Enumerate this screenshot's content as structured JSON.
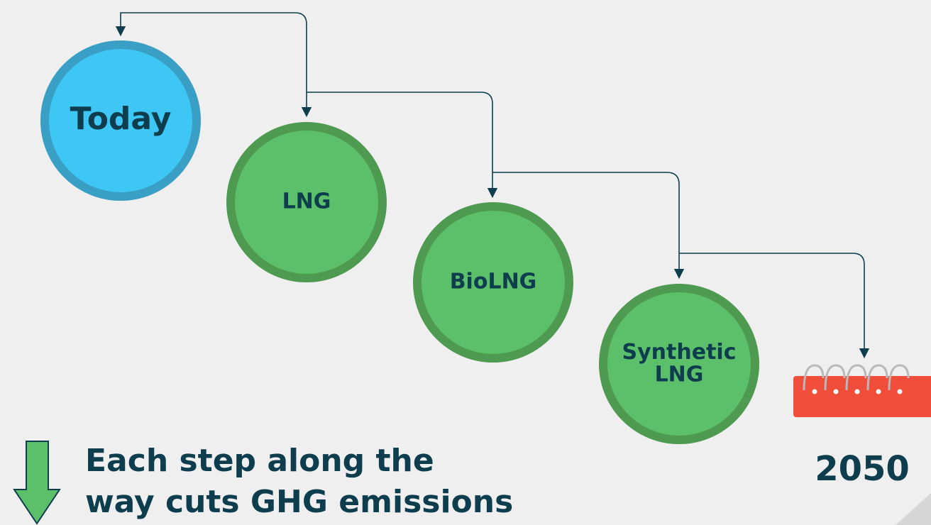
{
  "nodes": [
    {
      "lines": [
        "Today"
      ]
    },
    {
      "lines": [
        "LNG"
      ]
    },
    {
      "lines": [
        "BioLNG"
      ]
    },
    {
      "lines": [
        "Synthetic",
        "LNG"
      ]
    }
  ],
  "end": {
    "label": "2050"
  },
  "caption": {
    "lines": [
      "Each step along the",
      "way cuts GHG emissions"
    ]
  }
}
